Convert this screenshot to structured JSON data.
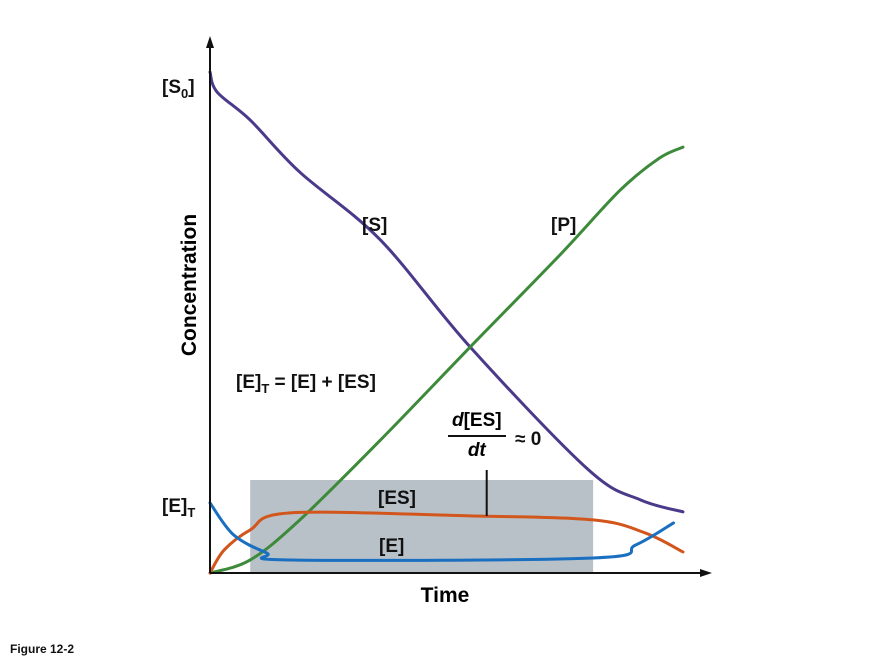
{
  "figure_caption": "Figure 12-2",
  "chart_data": {
    "type": "line",
    "title": "",
    "xlabel": "Time",
    "ylabel": "Concentration",
    "y_tick_labels": [
      {
        "label": "[S",
        "sub": "0",
        "close": "]"
      },
      {
        "label": "[E]",
        "sub": "T"
      }
    ],
    "grid": false,
    "xlim": [
      0,
      105
    ],
    "ylim": [
      0,
      110
    ],
    "series": [
      {
        "name": "[S]",
        "color": "#4b3a8a",
        "x": [
          0,
          1.5,
          8.5,
          19,
          36,
          55,
          80,
          91,
          100
        ],
        "y": [
          100,
          96,
          90.4,
          80.0,
          66.5,
          45.1,
          20.6,
          14.6,
          12.2
        ]
      },
      {
        "name": "[P]",
        "color": "#3d8a3a",
        "x": [
          0,
          8.5,
          19,
          36,
          55,
          74,
          86.7,
          95,
          100
        ],
        "y": [
          0,
          2.6,
          10.6,
          26.5,
          45.1,
          63.5,
          76.4,
          82.8,
          85
        ]
      },
      {
        "name": "[ES]",
        "color": "#d2561c",
        "x": [
          0,
          3,
          8.5,
          17,
          55,
          81,
          92,
          100
        ],
        "y": [
          0,
          4.6,
          8.6,
          12.0,
          11.4,
          10.6,
          8.0,
          4.2
        ]
      },
      {
        "name": "[E]",
        "color": "#1a6fc0",
        "x": [
          0,
          5,
          12,
          17,
          81,
          90,
          98
        ],
        "y": [
          14.0,
          7.6,
          4.0,
          2.6,
          3.0,
          5.6,
          10.0
        ]
      }
    ],
    "steady_state_region": {
      "x": [
        8.5,
        81
      ],
      "color": "#b9c1c8"
    },
    "annotations": {
      "equation": {
        "left": "[E]",
        "sub": "T",
        "right": " = [E] + [ES]"
      },
      "steady_state": {
        "numerator_italic": "d",
        "numerator": "[ES]",
        "denominator": "dt",
        "suffix": "≈ 0",
        "pointer_x": 58.5
      }
    }
  }
}
